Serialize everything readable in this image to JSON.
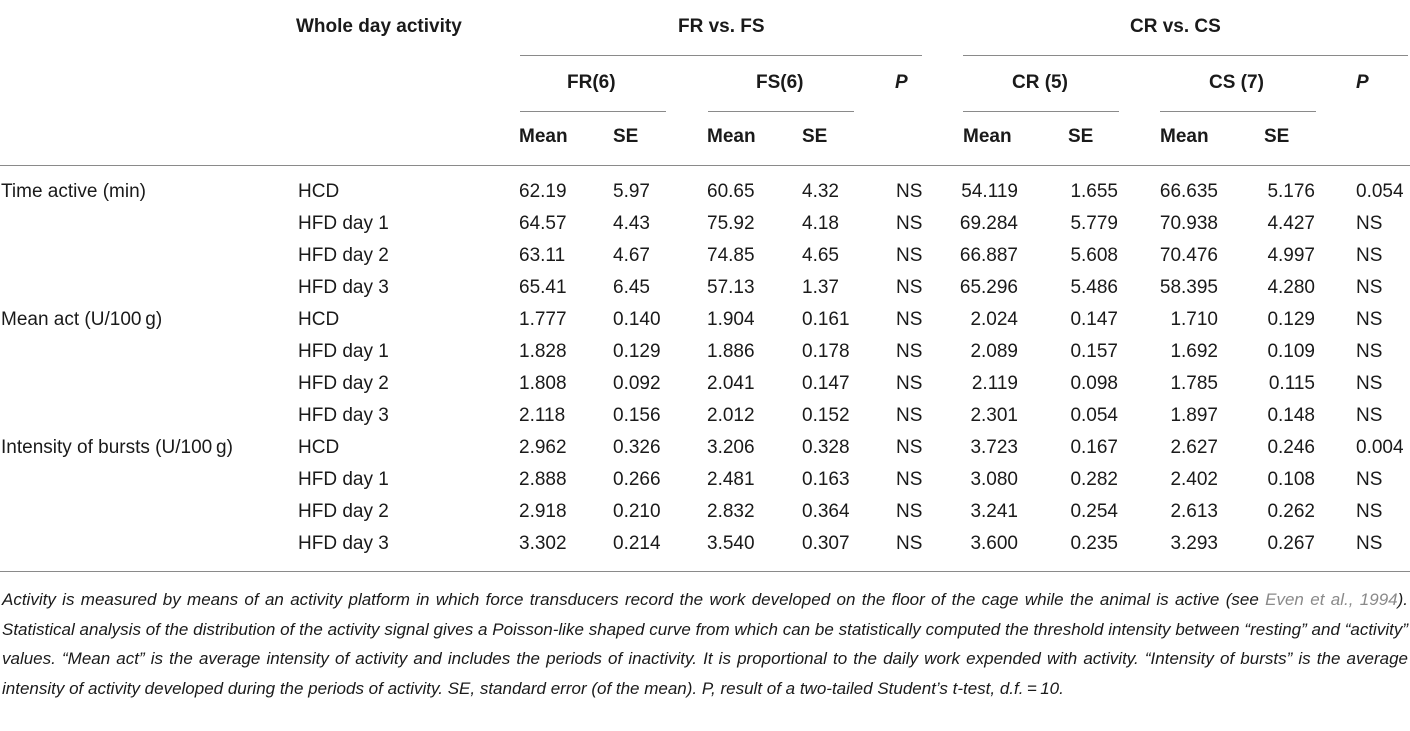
{
  "header": {
    "whole_day": "Whole day activity",
    "fr_vs_fs": "FR vs. FS",
    "cr_vs_cs": "CR vs. CS",
    "fr": "FR(6)",
    "fs": "FS(6)",
    "cr": "CR (5)",
    "cs": "CS (7)",
    "p": "P",
    "mean": "Mean",
    "se": "SE"
  },
  "rows": [
    {
      "measure": "Time active (min)",
      "diet": "HCD",
      "fr_mean": "62.19",
      "fr_se": "5.97",
      "fs_mean": "60.65",
      "fs_se": "4.32",
      "p1": "NS",
      "cr_mean": "54.119",
      "cr_se": "1.655",
      "cs_mean": "66.635",
      "cs_se": "5.176",
      "p2": "0.054"
    },
    {
      "measure": "",
      "diet": "HFD day 1",
      "fr_mean": "64.57",
      "fr_se": "4.43",
      "fs_mean": "75.92",
      "fs_se": "4.18",
      "p1": "NS",
      "cr_mean": "69.284",
      "cr_se": "5.779",
      "cs_mean": "70.938",
      "cs_se": "4.427",
      "p2": "NS"
    },
    {
      "measure": "",
      "diet": "HFD day 2",
      "fr_mean": "63.11",
      "fr_se": "4.67",
      "fs_mean": "74.85",
      "fs_se": "4.65",
      "p1": "NS",
      "cr_mean": "66.887",
      "cr_se": "5.608",
      "cs_mean": "70.476",
      "cs_se": "4.997",
      "p2": "NS"
    },
    {
      "measure": "",
      "diet": "HFD day 3",
      "fr_mean": "65.41",
      "fr_se": "6.45",
      "fs_mean": "57.13",
      "fs_se": "1.37",
      "p1": "NS",
      "cr_mean": "65.296",
      "cr_se": "5.486",
      "cs_mean": "58.395",
      "cs_se": "4.280",
      "p2": "NS"
    },
    {
      "measure": "Mean act (U/100 g)",
      "diet": "HCD",
      "fr_mean": "1.777",
      "fr_se": "0.140",
      "fs_mean": "1.904",
      "fs_se": "0.161",
      "p1": "NS",
      "cr_mean": "2.024",
      "cr_se": "0.147",
      "cs_mean": "1.710",
      "cs_se": "0.129",
      "p2": "NS"
    },
    {
      "measure": "",
      "diet": "HFD day 1",
      "fr_mean": "1.828",
      "fr_se": "0.129",
      "fs_mean": "1.886",
      "fs_se": "0.178",
      "p1": "NS",
      "cr_mean": "2.089",
      "cr_se": "0.157",
      "cs_mean": "1.692",
      "cs_se": "0.109",
      "p2": "NS"
    },
    {
      "measure": "",
      "diet": "HFD day 2",
      "fr_mean": "1.808",
      "fr_se": "0.092",
      "fs_mean": "2.041",
      "fs_se": "0.147",
      "p1": "NS",
      "cr_mean": "2.119",
      "cr_se": "0.098",
      "cs_mean": "1.785",
      "cs_se": "0.115",
      "p2": "NS"
    },
    {
      "measure": "",
      "diet": "HFD day 3",
      "fr_mean": "2.118",
      "fr_se": "0.156",
      "fs_mean": "2.012",
      "fs_se": "0.152",
      "p1": "NS",
      "cr_mean": "2.301",
      "cr_se": "0.054",
      "cs_mean": "1.897",
      "cs_se": "0.148",
      "p2": "NS"
    },
    {
      "measure": "Intensity of bursts (U/100 g)",
      "diet": "HCD",
      "fr_mean": "2.962",
      "fr_se": "0.326",
      "fs_mean": "3.206",
      "fs_se": "0.328",
      "p1": "NS",
      "cr_mean": "3.723",
      "cr_se": "0.167",
      "cs_mean": "2.627",
      "cs_se": "0.246",
      "p2": "0.004"
    },
    {
      "measure": "",
      "diet": "HFD day 1",
      "fr_mean": "2.888",
      "fr_se": "0.266",
      "fs_mean": "2.481",
      "fs_se": "0.163",
      "p1": "NS",
      "cr_mean": "3.080",
      "cr_se": "0.282",
      "cs_mean": "2.402",
      "cs_se": "0.108",
      "p2": "NS"
    },
    {
      "measure": "",
      "diet": "HFD day 2",
      "fr_mean": "2.918",
      "fr_se": "0.210",
      "fs_mean": "2.832",
      "fs_se": "0.364",
      "p1": "NS",
      "cr_mean": "3.241",
      "cr_se": "0.254",
      "cs_mean": "2.613",
      "cs_se": "0.262",
      "p2": "NS"
    },
    {
      "measure": "",
      "diet": "HFD day 3",
      "fr_mean": "3.302",
      "fr_se": "0.214",
      "fs_mean": "3.540",
      "fs_se": "0.307",
      "p1": "NS",
      "cr_mean": "3.600",
      "cr_se": "0.235",
      "cs_mean": "3.293",
      "cs_se": "0.267",
      "p2": "NS"
    }
  ],
  "caption": {
    "part1": "Activity is measured by means of an activity platform in which force transducers record the work developed on the floor of the cage while the animal is active (see ",
    "citation": "Even et al., 1994",
    "part2": "). Statistical analysis of the distribution of the activity signal gives a Poisson-like shaped curve from which can be statistically computed the threshold intensity between “resting” and “activity” values. “Mean act” is the average intensity of activity and includes the periods of inactivity. It is proportional to the daily work expended with activity. “Intensity of bursts” is the average intensity of activity developed during the periods of activity. SE, standard error (of the mean). P, result of a two-tailed Student’s t-test, d.f. = 10."
  }
}
